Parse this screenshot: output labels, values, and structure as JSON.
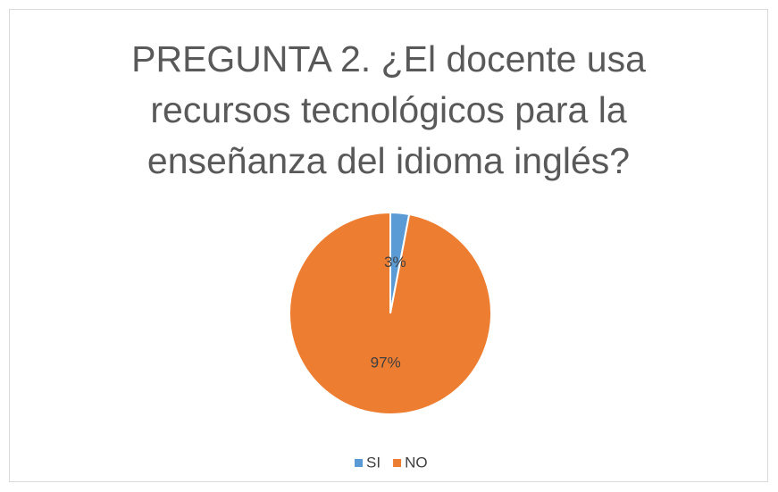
{
  "chart_data": {
    "type": "pie",
    "title": "PREGUNTA 2. ¿El docente usa recursos tecnológicos para la enseñanza del idioma inglés?",
    "categories": [
      "SI",
      "NO"
    ],
    "values": [
      3,
      97
    ],
    "value_labels": [
      "3%",
      "97%"
    ],
    "colors": [
      "#5b9bd5",
      "#ed7d31"
    ],
    "legend": "bottom"
  }
}
